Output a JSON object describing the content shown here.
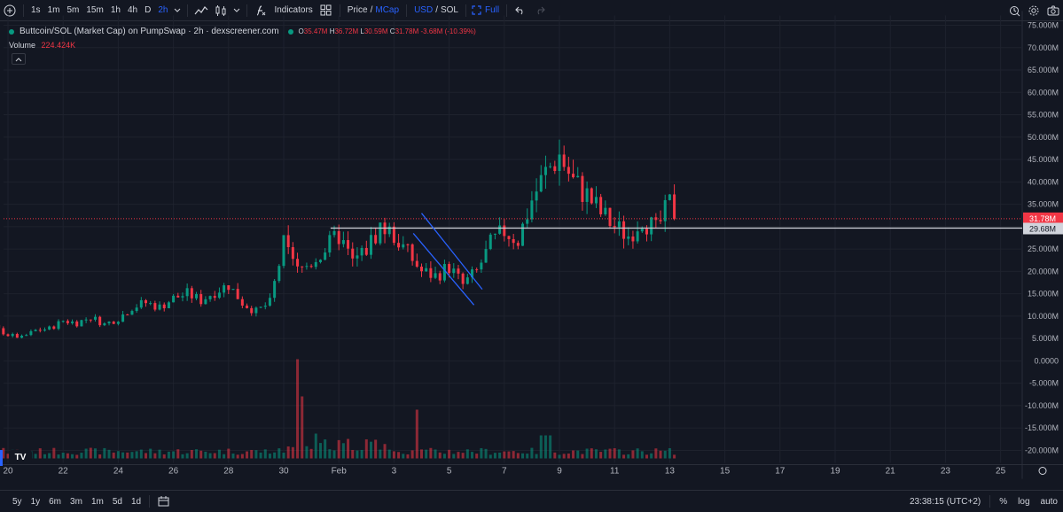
{
  "toolbar": {
    "intervals": [
      "1s",
      "1m",
      "5m",
      "15m",
      "1h",
      "4h",
      "D",
      "2h"
    ],
    "active_interval": "2h",
    "indicators_label": "Indicators",
    "price_label": "Price",
    "slash": "/",
    "mcap_label": "MCap",
    "usd_label": "USD",
    "sol_label": "SOL",
    "full_label": "Full"
  },
  "legend": {
    "title": "Buttcoin/SOL (Market Cap) on PumpSwap · 2h · dexscreener.com",
    "o_key": "O",
    "o_val": "35.47M",
    "h_key": "H",
    "h_val": "36.72M",
    "l_key": "L",
    "l_val": "30.59M",
    "c_key": "C",
    "c_val": "31.78M",
    "change": "-3.68M (-10.39%)",
    "volume_label": "Volume",
    "volume_value": "224.424K"
  },
  "colors": {
    "up": "#089981",
    "down": "#f23645",
    "background": "#131722",
    "grid": "#1e222d",
    "accent": "#2962ff",
    "channel": "#2962ff"
  },
  "price_axis": {
    "labels": [
      "75.000M",
      "70.000M",
      "65.000M",
      "60.000M",
      "55.000M",
      "50.000M",
      "45.000M",
      "40.000M",
      "35.000M",
      "30.000M",
      "25.000M",
      "20.000M",
      "15.000M",
      "10.000M",
      "5.000M",
      "0.0000",
      "-5.000M",
      "-10.000M",
      "-15.000M",
      "-20.000M"
    ],
    "current_price_label": "31.78M",
    "line_price_label": "29.68M"
  },
  "time_axis": {
    "labels": [
      "20",
      "22",
      "24",
      "26",
      "28",
      "30",
      "Feb",
      "3",
      "5",
      "7",
      "9",
      "11",
      "13",
      "15",
      "17",
      "19",
      "21",
      "23",
      "25"
    ]
  },
  "bottom": {
    "ranges": [
      "5y",
      "1y",
      "6m",
      "3m",
      "1m",
      "5d",
      "1d"
    ],
    "clock": "23:38:15 (UTC+2)",
    "percent": "%",
    "log": "log",
    "auto": "auto"
  },
  "tv_logo": "TV",
  "chart_data": {
    "type": "candlestick",
    "ylim": [
      -22000000,
      78000000
    ],
    "x_days": [
      20,
      31
    ],
    "horizontal_line": 29680000,
    "current_close": 31780000,
    "channel": {
      "upper": [
        [
          4.0,
          33000000
        ],
        [
          6.2,
          16000000
        ]
      ],
      "lower": [
        [
          3.7,
          28500000
        ],
        [
          5.9,
          12500000
        ]
      ]
    },
    "key_closes": [
      [
        -11.0,
        14000000
      ],
      [
        -10.5,
        11500000
      ],
      [
        -10.0,
        9500000
      ],
      [
        -9.5,
        8500000
      ],
      [
        -9.0,
        7800000
      ],
      [
        -8.5,
        7200000
      ],
      [
        -8.0,
        6800000
      ],
      [
        -7.5,
        7500000
      ],
      [
        -7.0,
        6500000
      ],
      [
        -6.5,
        6000000
      ],
      [
        -6.0,
        5500000
      ],
      [
        -5.5,
        5200000
      ],
      [
        -5.0,
        5500000
      ],
      [
        -4.5,
        6500000
      ],
      [
        -4.0,
        5000000
      ],
      [
        -3.5,
        4500000
      ],
      [
        -3.0,
        5000000
      ],
      [
        -2.5,
        4200000
      ],
      [
        -2.0,
        4800000
      ],
      [
        -1.5,
        5500000
      ],
      [
        -1.0,
        6500000
      ],
      [
        -0.5,
        7500000
      ],
      [
        0.0,
        5800000
      ],
      [
        0.5,
        5200000
      ],
      [
        1.0,
        6800000
      ],
      [
        1.5,
        7200000
      ],
      [
        2.0,
        9000000
      ],
      [
        2.5,
        8500000
      ],
      [
        3.0,
        9800000
      ],
      [
        3.5,
        8200000
      ],
      [
        4.0,
        9500000
      ],
      [
        4.5,
        12000000
      ],
      [
        5.0,
        13000000
      ],
      [
        5.5,
        12000000
      ],
      [
        6.0,
        14000000
      ],
      [
        6.5,
        15000000
      ],
      [
        7.0,
        13500000
      ],
      [
        7.5,
        15500000
      ],
      [
        8.0,
        17000000
      ],
      [
        8.5,
        13000000
      ],
      [
        9.0,
        11000000
      ],
      [
        9.5,
        13000000
      ],
      [
        10.0,
        26000000
      ],
      [
        10.5,
        20000000
      ],
      [
        11.0,
        22000000
      ],
      [
        11.5,
        25000000
      ],
      [
        12.0,
        28000000
      ],
      [
        12.5,
        22000000
      ],
      [
        13.0,
        25000000
      ],
      [
        13.5,
        30000000
      ],
      [
        14.0,
        28000000
      ],
      [
        14.5,
        24000000
      ],
      [
        15.0,
        20000000
      ],
      [
        15.5,
        19000000
      ],
      [
        16.0,
        21000000
      ],
      [
        16.5,
        17000000
      ],
      [
        17.0,
        20000000
      ],
      [
        17.5,
        26000000
      ],
      [
        18.0,
        29000000
      ],
      [
        18.5,
        27000000
      ],
      [
        19.0,
        36000000
      ],
      [
        19.5,
        42000000
      ],
      [
        20.0,
        46000000
      ],
      [
        20.5,
        40000000
      ],
      [
        21.0,
        37000000
      ],
      [
        21.5,
        33000000
      ],
      [
        22.0,
        30000000
      ],
      [
        22.5,
        28000000
      ],
      [
        23.0,
        32000000
      ],
      [
        23.5,
        29000000
      ],
      [
        24.0,
        35000000
      ],
      [
        24.3,
        31780000
      ]
    ],
    "volume_ylim": [
      0,
      12000000
    ]
  }
}
